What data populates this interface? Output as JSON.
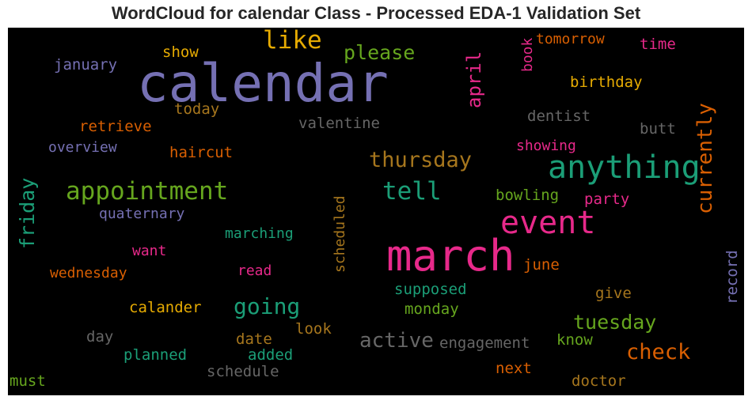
{
  "title": "WordCloud for calendar Class - Processed EDA-1 Validation Set",
  "words": {
    "calendar": "calendar",
    "march": "march",
    "anything": "anything",
    "appointment": "appointment",
    "event": "event",
    "tell": "tell",
    "like": "like",
    "thursday": "thursday",
    "going": "going",
    "active": "active",
    "check": "check",
    "tuesday": "tuesday",
    "currently": "currently",
    "april": "april",
    "friday": "friday",
    "please": "please",
    "birthday": "birthday",
    "january": "january",
    "show": "show",
    "tomorrow": "tomorrow",
    "time": "time",
    "book": "book",
    "today": "today",
    "valentine": "valentine",
    "dentist": "dentist",
    "retrieve": "retrieve",
    "butt": "butt",
    "overview": "overview",
    "haircut": "haircut",
    "showing": "showing",
    "bowling": "bowling",
    "party": "party",
    "quaternary": "quaternary",
    "scheduled": "scheduled",
    "marching": "marching",
    "want": "want",
    "read": "read",
    "june": "june",
    "wednesday": "wednesday",
    "supposed": "supposed",
    "record": "record",
    "give": "give",
    "calander": "calander",
    "monday": "monday",
    "look": "look",
    "day": "day",
    "date": "date",
    "engagement": "engagement",
    "know": "know",
    "planned": "planned",
    "added": "added",
    "next": "next",
    "schedule": "schedule",
    "must": "must",
    "doctor": "doctor"
  }
}
